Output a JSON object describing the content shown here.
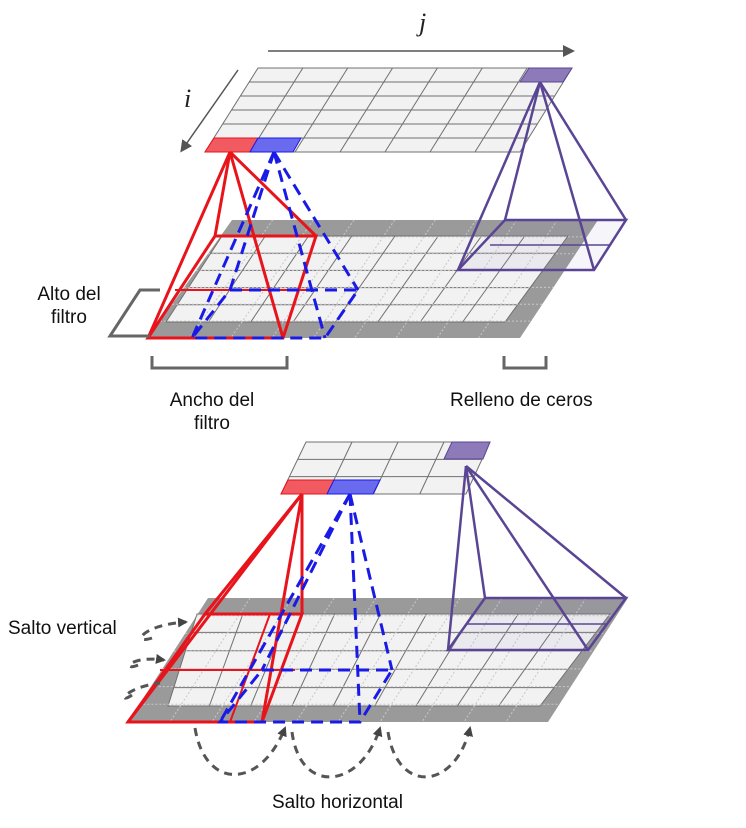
{
  "axes": {
    "j": "j",
    "i": "i"
  },
  "top": {
    "filter_height_label": "Alto del\nfiltro",
    "filter_width_label": "Ancho del\nfiltro",
    "zero_padding_label": "Relleno de ceros"
  },
  "bottom": {
    "vertical_stride_label": "Salto vertical",
    "horizontal_stride_label": "Salto horizontal"
  },
  "colors": {
    "red": "#e8141c",
    "red_fill": "#f05a60",
    "blue": "#1a1ae6",
    "blue_fill": "#6a6aee",
    "purple": "#5a4594",
    "purple_fill": "#8c7bb8",
    "padding_gray": "#9a9a9a",
    "grid_line": "#707070",
    "cell": "#f2f2f2",
    "arrow_gray": "#555555"
  }
}
